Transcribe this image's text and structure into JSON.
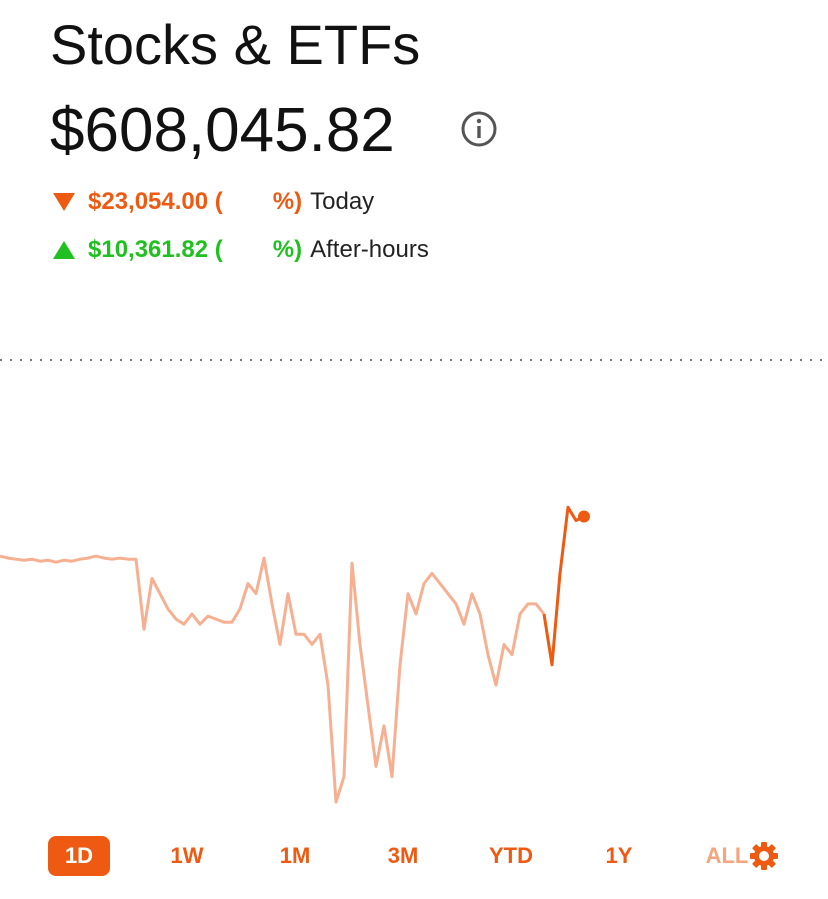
{
  "header": {
    "title": "Stocks & ETFs",
    "value": "$608,045.82"
  },
  "changes": [
    {
      "amount": "$23,054.00 (",
      "suffix": "%)",
      "label": "Today",
      "direction": "down",
      "color": "#ee5a12"
    },
    {
      "amount": "$10,361.82 (",
      "suffix": "%)",
      "label": "After-hours",
      "direction": "up",
      "color": "#1fc01f"
    }
  ],
  "chart": {
    "type": "line",
    "reference": 620738,
    "series": [
      {
        "color": "#f6b091",
        "values": [
          605877,
          605723,
          605646,
          605569,
          605646,
          605492,
          605569,
          605415,
          605569,
          605492,
          605646,
          605723,
          605877,
          605723,
          605646,
          605723,
          605646,
          605646,
          600333,
          604183,
          603028,
          601873,
          601103,
          600718,
          601488,
          600718,
          601334,
          601103,
          600872,
          600872,
          601873,
          603798,
          603028,
          605723,
          602258,
          599178,
          603028,
          599948,
          599948,
          599178,
          599948,
          596098,
          587243,
          589168,
          605338,
          599178,
          594558,
          589938,
          593018,
          589168,
          597638,
          603028,
          601488,
          603798,
          604568,
          603798,
          603028,
          602258,
          600718,
          603028,
          601488,
          598408,
          596098,
          599178,
          598408,
          601488,
          602258,
          602258,
          601488,
          null,
          null,
          null,
          null,
          null
        ]
      },
      {
        "color": "#ee5a12",
        "values": [
          null,
          null,
          null,
          null,
          null,
          null,
          null,
          null,
          null,
          null,
          null,
          null,
          null,
          null,
          null,
          null,
          null,
          null,
          null,
          null,
          null,
          null,
          null,
          null,
          null,
          null,
          null,
          null,
          null,
          null,
          null,
          null,
          null,
          null,
          null,
          null,
          null,
          null,
          null,
          null,
          null,
          null,
          null,
          null,
          null,
          null,
          null,
          null,
          null,
          null,
          null,
          null,
          null,
          null,
          null,
          null,
          null,
          null,
          null,
          null,
          null,
          null,
          null,
          null,
          null,
          null,
          null,
          null,
          601488,
          597638,
          604568,
          609573,
          608572,
          608880
        ]
      }
    ]
  },
  "ranges": [
    "1D",
    "1W",
    "1M",
    "3M",
    "YTD",
    "1Y",
    "ALL"
  ],
  "accent": "#ee5a12"
}
